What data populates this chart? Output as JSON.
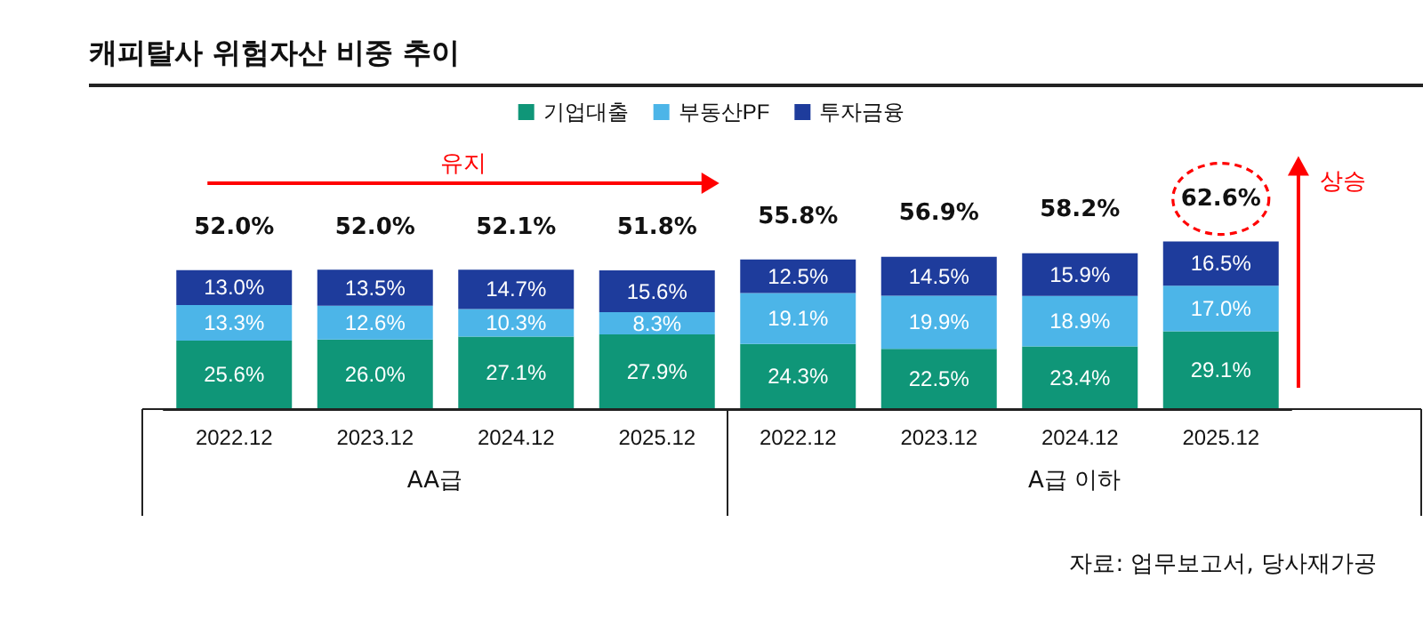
{
  "chart_data": {
    "type": "bar",
    "title": "캐피탈사 위험자산 비중 추이",
    "stacked": true,
    "legend": "top",
    "tick_labels": "x",
    "categories": [
      "2022.12",
      "2023.12",
      "2024.12",
      "2025.12",
      "2022.12",
      "2023.12",
      "2024.12",
      "2025.12"
    ],
    "series": [
      {
        "name": "기업대출",
        "color": "#0f9678",
        "values": [
          25.6,
          26.0,
          27.1,
          27.9,
          24.3,
          22.5,
          23.4,
          29.1
        ],
        "value_labels": [
          "25.6%",
          "26.0%",
          "27.1%",
          "27.9%",
          "24.3%",
          "22.5%",
          "23.4%",
          "29.1%"
        ]
      },
      {
        "name": "부동산PF",
        "color": "#4cb5e8",
        "values": [
          13.3,
          12.6,
          10.3,
          8.3,
          19.1,
          19.9,
          18.9,
          17.0
        ],
        "value_labels": [
          "13.3%",
          "12.6%",
          "10.3%",
          "8.3%",
          "19.1%",
          "19.9%",
          "18.9%",
          "17.0%"
        ]
      },
      {
        "name": "투자금융",
        "color": "#1e3c9c",
        "values": [
          13.0,
          13.5,
          14.7,
          15.6,
          12.5,
          14.5,
          15.9,
          16.5
        ],
        "value_labels": [
          "13.0%",
          "13.5%",
          "14.7%",
          "15.6%",
          "12.5%",
          "14.5%",
          "15.9%",
          "16.5%"
        ]
      }
    ],
    "totals": [
      "52.0%",
      "52.0%",
      "52.1%",
      "51.8%",
      "55.8%",
      "56.9%",
      "58.2%",
      "62.6%"
    ],
    "annotations": [
      "유지",
      "상승",
      "AA급",
      "A급 이하",
      "자료: 업무보고서, 당사재가공"
    ]
  }
}
